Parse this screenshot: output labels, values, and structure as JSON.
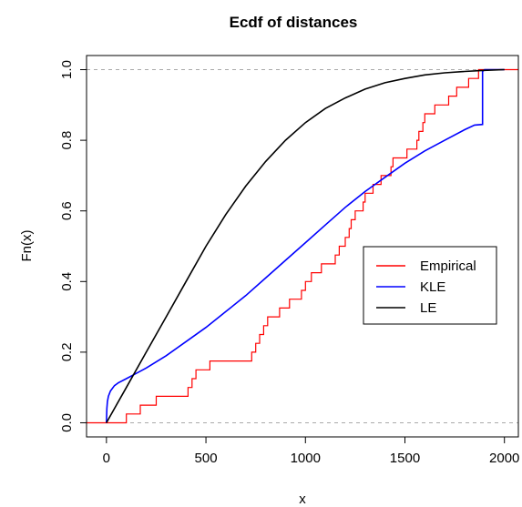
{
  "chart_data": {
    "type": "line",
    "title": "Ecdf of distances",
    "xlabel": "x",
    "ylabel": "Fn(x)",
    "xlim": [
      -100,
      2070
    ],
    "ylim": [
      -0.04,
      1.04
    ],
    "x_ticks": [
      0,
      500,
      1000,
      1500,
      2000
    ],
    "x_tick_labels": [
      "0",
      "500",
      "1000",
      "1500",
      "2000"
    ],
    "y_ticks": [
      0.0,
      0.2,
      0.4,
      0.6,
      0.8,
      1.0
    ],
    "y_tick_labels": [
      "0.0",
      "0.2",
      "0.4",
      "0.6",
      "0.8",
      "1.0"
    ],
    "reference_lines": [
      0,
      1
    ],
    "legend_position": "right",
    "series": [
      {
        "name": "Empirical",
        "color": "#ff0000",
        "step": true,
        "x": [
          -100,
          100,
          170,
          250,
          410,
          430,
          450,
          470,
          520,
          730,
          750,
          770,
          790,
          810,
          870,
          920,
          960,
          980,
          1000,
          1030,
          1080,
          1150,
          1170,
          1180,
          1190,
          1200,
          1210,
          1220,
          1230,
          1240,
          1250,
          1270,
          1280,
          1290,
          1300,
          1320,
          1340,
          1380,
          1400,
          1430,
          1440,
          1470,
          1480,
          1490,
          1510,
          1540,
          1550,
          1560,
          1570,
          1590,
          1600,
          1620,
          1650,
          1680,
          1720,
          1760,
          1800,
          1820,
          1840,
          1860,
          1870,
          1890,
          2070
        ],
        "y": [
          0,
          0.025,
          0.05,
          0.075,
          0.1,
          0.125,
          0.15,
          0.15,
          0.175,
          0.2,
          0.225,
          0.25,
          0.275,
          0.3,
          0.325,
          0.35,
          0.35,
          0.375,
          0.4,
          0.425,
          0.45,
          0.475,
          0.5,
          0.5,
          0.5,
          0.525,
          0.525,
          0.55,
          0.575,
          0.575,
          0.6,
          0.6,
          0.6,
          0.625,
          0.65,
          0.65,
          0.675,
          0.7,
          0.7,
          0.725,
          0.75,
          0.75,
          0.75,
          0.75,
          0.775,
          0.775,
          0.775,
          0.8,
          0.825,
          0.85,
          0.875,
          0.875,
          0.9,
          0.9,
          0.925,
          0.95,
          0.95,
          0.975,
          0.975,
          0.975,
          1.0,
          1.0,
          1.0
        ]
      },
      {
        "name": "KLE",
        "color": "#0000ff",
        "step": false,
        "x": [
          0,
          2,
          5,
          10,
          20,
          40,
          60,
          100,
          150,
          200,
          300,
          400,
          500,
          600,
          700,
          800,
          900,
          1000,
          1100,
          1200,
          1300,
          1400,
          1500,
          1600,
          1700,
          1800,
          1850,
          1890,
          1890,
          1900,
          2000
        ],
        "y": [
          0,
          0.04,
          0.06,
          0.075,
          0.09,
          0.105,
          0.113,
          0.125,
          0.14,
          0.155,
          0.19,
          0.23,
          0.27,
          0.315,
          0.36,
          0.41,
          0.46,
          0.51,
          0.56,
          0.61,
          0.655,
          0.695,
          0.735,
          0.77,
          0.8,
          0.83,
          0.843,
          0.845,
          0.995,
          1.0,
          1.0
        ]
      },
      {
        "name": "LE",
        "color": "#000000",
        "step": false,
        "x": [
          0,
          100,
          200,
          300,
          400,
          500,
          600,
          700,
          800,
          900,
          1000,
          1100,
          1200,
          1300,
          1400,
          1500,
          1600,
          1700,
          1800,
          1900,
          2000
        ],
        "y": [
          0,
          0.1,
          0.2,
          0.3,
          0.4,
          0.5,
          0.59,
          0.67,
          0.74,
          0.8,
          0.85,
          0.89,
          0.92,
          0.945,
          0.963,
          0.975,
          0.985,
          0.991,
          0.995,
          0.998,
          1.0
        ]
      }
    ]
  }
}
